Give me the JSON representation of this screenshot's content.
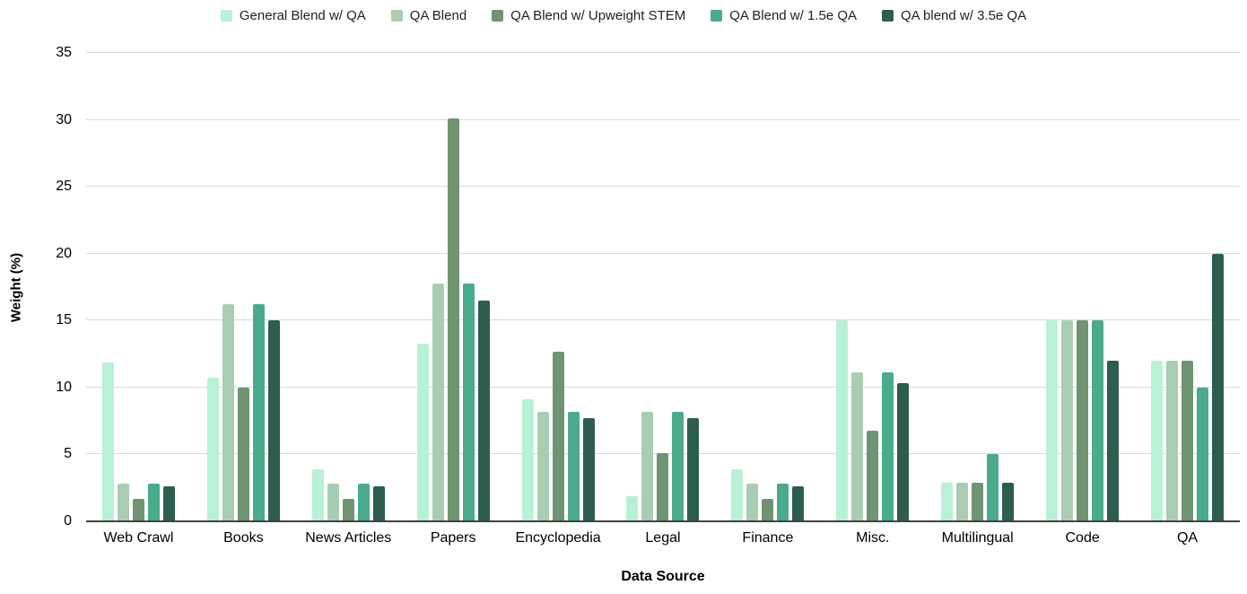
{
  "chart_data": {
    "type": "bar",
    "title": "",
    "xlabel": "Data Source",
    "ylabel": "Weight (%)",
    "ylim": [
      0,
      35
    ],
    "yticks": [
      0,
      5,
      10,
      15,
      20,
      25,
      30,
      35
    ],
    "grid": true,
    "legend_position": "top",
    "grid_color": "#d9d9d9",
    "axis_line_color": "#424242",
    "categories": [
      "Web Crawl",
      "Books",
      "News Articles",
      "Papers",
      "Encyclopedia",
      "Legal",
      "Finance",
      "Misc.",
      "Multilingual",
      "Code",
      "QA"
    ],
    "series": [
      {
        "name": "General Blend w/ QA",
        "color": "#b8f1d6",
        "values": [
          11.9,
          10.7,
          3.9,
          13.3,
          9.1,
          1.9,
          3.9,
          15.0,
          2.9,
          15.0,
          12.0
        ]
      },
      {
        "name": "QA Blend",
        "color": "#a8cdb2",
        "values": [
          2.8,
          16.2,
          2.8,
          17.8,
          8.2,
          8.2,
          2.8,
          11.1,
          2.9,
          15.0,
          12.0
        ]
      },
      {
        "name": "QA Blend w/ Upweight STEM",
        "color": "#6e9471",
        "values": [
          1.7,
          10.0,
          1.7,
          30.1,
          12.7,
          5.1,
          1.7,
          6.8,
          2.9,
          15.0,
          12.0
        ]
      },
      {
        "name": "QA Blend w/ 1.5e QA",
        "color": "#49aa8c",
        "values": [
          2.8,
          16.2,
          2.8,
          17.8,
          8.2,
          8.2,
          2.8,
          11.1,
          5.0,
          15.0,
          10.0
        ]
      },
      {
        "name": "QA blend w/ 3.5e QA",
        "color": "#2c5d4f",
        "values": [
          2.6,
          15.0,
          2.6,
          16.5,
          7.7,
          7.7,
          2.6,
          10.3,
          2.9,
          12.0,
          20.0
        ]
      }
    ]
  }
}
